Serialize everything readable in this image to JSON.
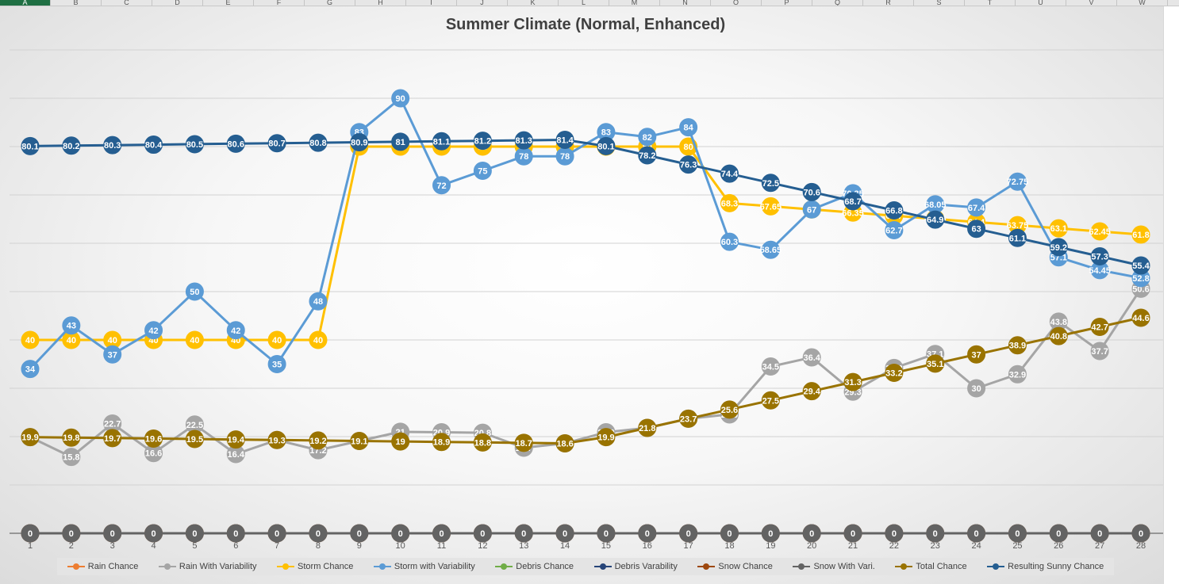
{
  "spreadsheet": {
    "column_headers": [
      "A",
      "B",
      "C",
      "D",
      "E",
      "F",
      "G",
      "H",
      "I",
      "J",
      "K",
      "L",
      "M",
      "N",
      "O",
      "P",
      "Q",
      "R",
      "S",
      "T",
      "U",
      "V",
      "W"
    ]
  },
  "chart_data": {
    "type": "line",
    "title": "Summer Climate (Normal, Enhanced)",
    "x": [
      "1",
      "2",
      "3",
      "4",
      "5",
      "6",
      "7",
      "8",
      "9",
      "10",
      "11",
      "12",
      "13",
      "14",
      "15",
      "16",
      "17",
      "18",
      "19",
      "20",
      "21",
      "22",
      "23",
      "24",
      "25",
      "26",
      "27",
      "28"
    ],
    "ylim": [
      0,
      100
    ],
    "grid": true,
    "legend_position": "bottom",
    "series": [
      {
        "name": "Rain Chance",
        "color": "#ed7d31",
        "values": [
          null,
          null,
          null,
          null,
          null,
          null,
          null,
          null,
          null,
          null,
          null,
          null,
          null,
          null,
          null,
          null,
          null,
          null,
          null,
          null,
          null,
          null,
          null,
          null,
          null,
          null,
          null,
          null
        ]
      },
      {
        "name": "Rain With Variability",
        "color": "#a5a5a5",
        "values": [
          19.9,
          15.8,
          22.7,
          16.6,
          22.5,
          16.4,
          19.3,
          17.2,
          19.1,
          21,
          20.9,
          20.8,
          17.7,
          18.6,
          20.9,
          21.8,
          23.7,
          24.6,
          34.5,
          36.4,
          29.3,
          34.2,
          37.1,
          30,
          32.9,
          43.8,
          37.7,
          50.6
        ]
      },
      {
        "name": "Storm Chance",
        "color": "#ffc000",
        "values": [
          40,
          40,
          40,
          40,
          40,
          40,
          40,
          40,
          80,
          80,
          80,
          80,
          80,
          80,
          80,
          80,
          80,
          68.3,
          67.65,
          67,
          66.35,
          65.7,
          65.05,
          64.4,
          63.75,
          63.1,
          62.45,
          61.8
        ]
      },
      {
        "name": "Storm with Variability",
        "color": "#5b9bd5",
        "values": [
          34,
          43,
          37,
          42,
          50,
          42,
          35,
          48,
          83,
          90,
          72,
          75,
          78,
          78,
          83,
          82,
          84,
          60.3,
          58.65,
          67,
          70.35,
          62.7,
          68.05,
          67.4,
          72.75,
          57.1,
          54.45,
          52.8
        ]
      },
      {
        "name": "Debris Chance",
        "color": "#70ad47",
        "values": [
          null,
          null,
          null,
          null,
          null,
          null,
          null,
          null,
          null,
          null,
          null,
          null,
          null,
          null,
          null,
          null,
          null,
          null,
          null,
          null,
          null,
          null,
          null,
          null,
          null,
          null,
          null,
          null
        ]
      },
      {
        "name": "Debris Varability",
        "color": "#264478",
        "values": [
          null,
          null,
          null,
          null,
          null,
          null,
          null,
          null,
          null,
          null,
          null,
          null,
          null,
          null,
          null,
          null,
          null,
          null,
          null,
          null,
          null,
          null,
          null,
          null,
          null,
          null,
          null,
          null
        ]
      },
      {
        "name": "Snow Chance",
        "color": "#9e480e",
        "values": [
          0,
          0,
          0,
          0,
          0,
          0,
          0,
          0,
          0,
          0,
          0,
          0,
          0,
          0,
          0,
          0,
          0,
          0,
          0,
          0,
          0,
          0,
          0,
          0,
          0,
          0,
          0,
          0
        ]
      },
      {
        "name": "Snow With Vari.",
        "color": "#636363",
        "values": [
          0,
          0,
          0,
          0,
          0,
          0,
          0,
          0,
          0,
          0,
          0,
          0,
          0,
          0,
          0,
          0,
          0,
          0,
          0,
          0,
          0,
          0,
          0,
          0,
          0,
          0,
          0,
          0
        ]
      },
      {
        "name": "Total Chance",
        "color": "#997300",
        "values": [
          19.9,
          19.8,
          19.7,
          19.6,
          19.5,
          19.4,
          19.3,
          19.2,
          19.1,
          19,
          18.9,
          18.8,
          18.7,
          18.6,
          19.9,
          21.8,
          23.7,
          25.6,
          27.5,
          29.4,
          31.3,
          33.2,
          35.1,
          37,
          38.9,
          40.8,
          42.7,
          44.6
        ]
      },
      {
        "name": "Resulting Sunny Chance",
        "color": "#255e91",
        "values": [
          80.1,
          80.2,
          80.3,
          80.4,
          80.5,
          80.6,
          80.7,
          80.8,
          80.9,
          81,
          81.1,
          81.2,
          81.3,
          81.4,
          80.1,
          78.2,
          76.3,
          74.4,
          72.5,
          70.6,
          68.7,
          66.8,
          64.9,
          63,
          61.1,
          59.2,
          57.3,
          55.4
        ]
      }
    ]
  }
}
